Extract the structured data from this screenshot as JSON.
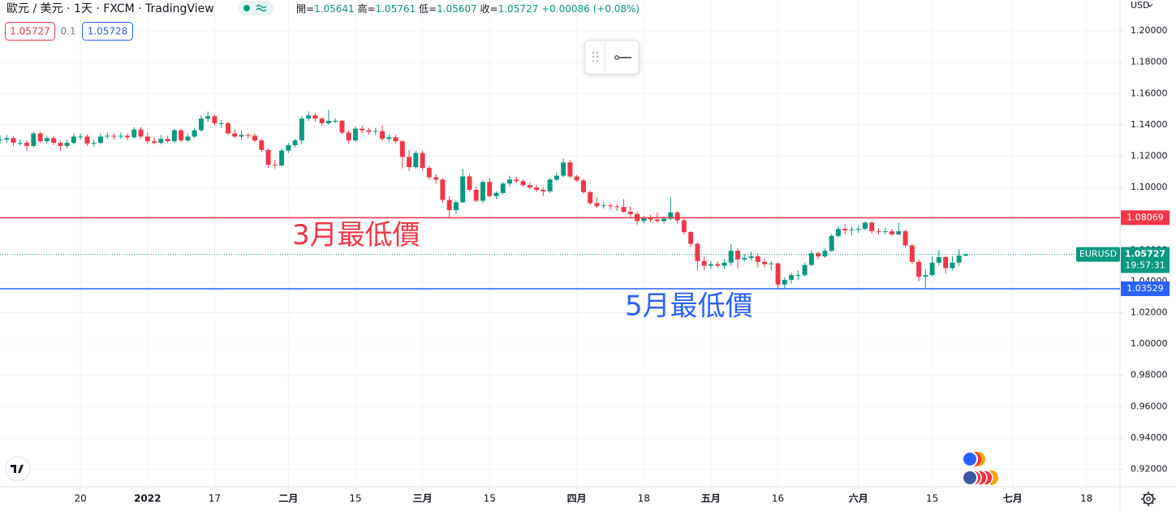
{
  "header": {
    "symbol": "歐元 / 美元 · 1天 · FXCM · TradingView",
    "open_label": "開=",
    "high_label": "高=",
    "low_label": "低=",
    "close_label": "收=",
    "change": "+0.00086",
    "change_pct": "(+0.08%)"
  },
  "quote": {
    "bid": 1.05727,
    "spread": 0.1,
    "ask": 1.05728
  },
  "currency": "USD",
  "chart_data": {
    "type": "candlestick",
    "symbol_label": "EURUSD",
    "countdown": "19:57:31",
    "up_color": "#089981",
    "down_color": "#f23645",
    "xlim": [
      0,
      167
    ],
    "ylim": [
      0.9089,
      1.2197
    ],
    "xticks": [
      {
        "value": 12,
        "label": "20"
      },
      {
        "value": 22,
        "label": "2022"
      },
      {
        "value": 32,
        "label": "17"
      },
      {
        "value": 43,
        "label": "二月"
      },
      {
        "value": 53,
        "label": "15"
      },
      {
        "value": 63,
        "label": "三月"
      },
      {
        "value": 73,
        "label": "15"
      },
      {
        "value": 86,
        "label": "四月"
      },
      {
        "value": 96,
        "label": "18"
      },
      {
        "value": 106,
        "label": "五月"
      },
      {
        "value": 116,
        "label": "16"
      },
      {
        "value": 128,
        "label": "六月"
      },
      {
        "value": 139,
        "label": "15"
      },
      {
        "value": 151,
        "label": "七月"
      },
      {
        "value": 162,
        "label": "18"
      }
    ],
    "yticks": [
      {
        "value": 0.92,
        "label": "0.92000"
      },
      {
        "value": 0.94,
        "label": "0.94000"
      },
      {
        "value": 0.96,
        "label": "0.96000"
      },
      {
        "value": 0.98,
        "label": "0.98000"
      },
      {
        "value": 1.0,
        "label": "1.00000"
      },
      {
        "value": 1.02,
        "label": "1.02000"
      },
      {
        "value": 1.04,
        "label": "1.04000"
      },
      {
        "value": 1.06,
        "label": "1.06000"
      },
      {
        "value": 1.08,
        "label": "1.08000"
      },
      {
        "value": 1.1,
        "label": "1.10000"
      },
      {
        "value": 1.12,
        "label": "1.12000"
      },
      {
        "value": 1.14,
        "label": "1.14000"
      },
      {
        "value": 1.16,
        "label": "1.16000"
      },
      {
        "value": 1.18,
        "label": "1.18000"
      },
      {
        "value": 1.2,
        "label": "1.20000"
      }
    ],
    "grid": true,
    "hlines": [
      {
        "value": 1.08069,
        "label": "3月最低價",
        "color": "#f23645"
      },
      {
        "value": 1.03529,
        "label": "5月最低價",
        "color": "#2962ff"
      }
    ],
    "ohlc": [
      [
        1.13,
        1.1335,
        1.128,
        1.1305
      ],
      [
        1.1305,
        1.1335,
        1.1285,
        1.1315
      ],
      [
        1.1315,
        1.133,
        1.1265,
        1.1285
      ],
      [
        1.1285,
        1.1305,
        1.1265,
        1.1285
      ],
      [
        1.1285,
        1.13,
        1.123,
        1.1265
      ],
      [
        1.1265,
        1.1355,
        1.1255,
        1.1345
      ],
      [
        1.1345,
        1.1355,
        1.1285,
        1.1295
      ],
      [
        1.1295,
        1.133,
        1.128,
        1.1315
      ],
      [
        1.1315,
        1.133,
        1.127,
        1.1285
      ],
      [
        1.1285,
        1.13,
        1.1235,
        1.1265
      ],
      [
        1.1265,
        1.1305,
        1.125,
        1.1285
      ],
      [
        1.1285,
        1.1345,
        1.1275,
        1.1325
      ],
      [
        1.1325,
        1.1345,
        1.1305,
        1.1325
      ],
      [
        1.1325,
        1.134,
        1.1265,
        1.128
      ],
      [
        1.128,
        1.1305,
        1.126,
        1.1285
      ],
      [
        1.1285,
        1.1345,
        1.1275,
        1.1325
      ],
      [
        1.1325,
        1.135,
        1.131,
        1.133
      ],
      [
        1.133,
        1.1345,
        1.1305,
        1.1325
      ],
      [
        1.1325,
        1.135,
        1.131,
        1.133
      ],
      [
        1.133,
        1.1345,
        1.13,
        1.132
      ],
      [
        1.132,
        1.1385,
        1.131,
        1.137
      ],
      [
        1.137,
        1.1385,
        1.131,
        1.1325
      ],
      [
        1.1325,
        1.135,
        1.128,
        1.1295
      ],
      [
        1.1295,
        1.132,
        1.1275,
        1.1285
      ],
      [
        1.1285,
        1.1335,
        1.1275,
        1.131
      ],
      [
        1.131,
        1.133,
        1.1285,
        1.1295
      ],
      [
        1.1295,
        1.1375,
        1.1285,
        1.1365
      ],
      [
        1.1365,
        1.1375,
        1.129,
        1.13
      ],
      [
        1.13,
        1.1345,
        1.129,
        1.1325
      ],
      [
        1.1325,
        1.138,
        1.1315,
        1.1365
      ],
      [
        1.1365,
        1.146,
        1.1355,
        1.144
      ],
      [
        1.144,
        1.1485,
        1.142,
        1.1455
      ],
      [
        1.1455,
        1.1465,
        1.1395,
        1.141
      ],
      [
        1.141,
        1.143,
        1.138,
        1.141
      ],
      [
        1.141,
        1.142,
        1.1335,
        1.1345
      ],
      [
        1.1345,
        1.137,
        1.1315,
        1.1325
      ],
      [
        1.1325,
        1.136,
        1.1305,
        1.1335
      ],
      [
        1.1335,
        1.135,
        1.131,
        1.133
      ],
      [
        1.133,
        1.1345,
        1.129,
        1.13
      ],
      [
        1.13,
        1.131,
        1.1225,
        1.124
      ],
      [
        1.124,
        1.125,
        1.1125,
        1.1145
      ],
      [
        1.1145,
        1.1175,
        1.112,
        1.114
      ],
      [
        1.114,
        1.125,
        1.1135,
        1.1235
      ],
      [
        1.1235,
        1.1285,
        1.122,
        1.127
      ],
      [
        1.127,
        1.131,
        1.1255,
        1.13
      ],
      [
        1.13,
        1.1455,
        1.128,
        1.144
      ],
      [
        1.144,
        1.1485,
        1.1425,
        1.146
      ],
      [
        1.146,
        1.1475,
        1.142,
        1.144
      ],
      [
        1.144,
        1.145,
        1.1395,
        1.141
      ],
      [
        1.141,
        1.1495,
        1.14,
        1.1425
      ],
      [
        1.1425,
        1.144,
        1.141,
        1.1425
      ],
      [
        1.1425,
        1.143,
        1.134,
        1.135
      ],
      [
        1.135,
        1.1365,
        1.128,
        1.13
      ],
      [
        1.13,
        1.139,
        1.129,
        1.1375
      ],
      [
        1.1375,
        1.1395,
        1.1345,
        1.1365
      ],
      [
        1.1365,
        1.138,
        1.1335,
        1.1355
      ],
      [
        1.1355,
        1.138,
        1.1335,
        1.136
      ],
      [
        1.136,
        1.1395,
        1.13,
        1.131
      ],
      [
        1.131,
        1.134,
        1.129,
        1.132
      ],
      [
        1.132,
        1.1335,
        1.128,
        1.1295
      ],
      [
        1.1295,
        1.13,
        1.112,
        1.1195
      ],
      [
        1.1195,
        1.124,
        1.1105,
        1.113
      ],
      [
        1.113,
        1.1235,
        1.112,
        1.122
      ],
      [
        1.122,
        1.1235,
        1.111,
        1.1125
      ],
      [
        1.1125,
        1.114,
        1.105,
        1.1065
      ],
      [
        1.1065,
        1.1085,
        1.1025,
        1.105
      ],
      [
        1.105,
        1.106,
        1.09,
        1.092
      ],
      [
        1.092,
        1.0945,
        1.0805,
        1.0855
      ],
      [
        1.0855,
        1.092,
        1.083,
        1.0905
      ],
      [
        1.0905,
        1.112,
        1.09,
        1.107
      ],
      [
        1.107,
        1.1085,
        1.0975,
        1.0985
      ],
      [
        1.0985,
        1.1005,
        1.0905,
        1.0915
      ],
      [
        1.0915,
        1.1045,
        1.09,
        1.1035
      ],
      [
        1.1035,
        1.106,
        1.0935,
        1.0945
      ],
      [
        1.0945,
        1.0975,
        1.0925,
        1.0965
      ],
      [
        1.0965,
        1.1035,
        1.0955,
        1.1025
      ],
      [
        1.1025,
        1.1075,
        1.1005,
        1.105
      ],
      [
        1.105,
        1.107,
        1.103,
        1.104
      ],
      [
        1.104,
        1.105,
        1.1005,
        1.1015
      ],
      [
        1.1015,
        1.103,
        1.099,
        1.1
      ],
      [
        1.1,
        1.1015,
        1.097,
        1.0985
      ],
      [
        1.0985,
        1.1,
        1.0945,
        1.0975
      ],
      [
        1.0975,
        1.106,
        1.0965,
        1.105
      ],
      [
        1.105,
        1.11,
        1.104,
        1.1075
      ],
      [
        1.1075,
        1.1185,
        1.1065,
        1.116
      ],
      [
        1.116,
        1.1175,
        1.106,
        1.107
      ],
      [
        1.107,
        1.108,
        1.1035,
        1.1045
      ],
      [
        1.1045,
        1.1055,
        1.096,
        1.097
      ],
      [
        1.097,
        1.098,
        1.089,
        1.09
      ],
      [
        1.09,
        1.0935,
        1.087,
        1.088
      ],
      [
        1.088,
        1.0905,
        1.0865,
        1.0885
      ],
      [
        1.0885,
        1.09,
        1.086,
        1.088
      ],
      [
        1.088,
        1.0895,
        1.085,
        1.0875
      ],
      [
        1.0875,
        1.0925,
        1.084,
        1.0845
      ],
      [
        1.0845,
        1.088,
        1.081,
        1.083
      ],
      [
        1.083,
        1.0845,
        1.076,
        1.0785
      ],
      [
        1.0785,
        1.082,
        1.077,
        1.0805
      ],
      [
        1.0805,
        1.0825,
        1.078,
        1.0795
      ],
      [
        1.0795,
        1.084,
        1.0775,
        1.0785
      ],
      [
        1.0785,
        1.0815,
        1.077,
        1.08
      ],
      [
        1.08,
        1.0935,
        1.079,
        1.084
      ],
      [
        1.084,
        1.085,
        1.077,
        1.079
      ],
      [
        1.079,
        1.08,
        1.07,
        1.0715
      ],
      [
        1.0715,
        1.072,
        1.062,
        1.064
      ],
      [
        1.064,
        1.065,
        1.047,
        1.053
      ],
      [
        1.053,
        1.056,
        1.047,
        1.05
      ],
      [
        1.05,
        1.053,
        1.048,
        1.051
      ],
      [
        1.051,
        1.0525,
        1.049,
        1.05
      ],
      [
        1.05,
        1.054,
        1.048,
        1.052
      ],
      [
        1.052,
        1.064,
        1.05,
        1.0595
      ],
      [
        1.0595,
        1.061,
        1.048,
        1.054
      ],
      [
        1.054,
        1.0575,
        1.0525,
        1.055
      ],
      [
        1.055,
        1.059,
        1.0535,
        1.056
      ],
      [
        1.056,
        1.058,
        1.049,
        1.0525
      ],
      [
        1.0525,
        1.0545,
        1.049,
        1.051
      ],
      [
        1.051,
        1.053,
        1.047,
        1.0515
      ],
      [
        1.0515,
        1.052,
        1.0355,
        1.038
      ],
      [
        1.038,
        1.0425,
        1.035,
        1.041
      ],
      [
        1.041,
        1.0455,
        1.0385,
        1.044
      ],
      [
        1.044,
        1.047,
        1.041,
        1.044
      ],
      [
        1.044,
        1.052,
        1.043,
        1.0505
      ],
      [
        1.0505,
        1.06,
        1.0495,
        1.058
      ],
      [
        1.058,
        1.059,
        1.054,
        1.056
      ],
      [
        1.056,
        1.061,
        1.055,
        1.0595
      ],
      [
        1.0595,
        1.07,
        1.059,
        1.069
      ],
      [
        1.069,
        1.075,
        1.068,
        1.0735
      ],
      [
        1.0735,
        1.0765,
        1.07,
        1.0725
      ],
      [
        1.0725,
        1.075,
        1.0695,
        1.073
      ],
      [
        1.073,
        1.076,
        1.071,
        1.0735
      ],
      [
        1.0735,
        1.0785,
        1.0725,
        1.0775
      ],
      [
        1.0775,
        1.0785,
        1.0705,
        1.072
      ],
      [
        1.072,
        1.074,
        1.07,
        1.0715
      ],
      [
        1.0715,
        1.0745,
        1.07,
        1.072
      ],
      [
        1.072,
        1.0735,
        1.069,
        1.07
      ],
      [
        1.07,
        1.0775,
        1.0695,
        1.072
      ],
      [
        1.072,
        1.073,
        1.0615,
        1.063
      ],
      [
        1.063,
        1.064,
        1.051,
        1.0525
      ],
      [
        1.0525,
        1.054,
        1.04,
        1.043
      ],
      [
        1.043,
        1.048,
        1.036,
        1.044
      ],
      [
        1.044,
        1.056,
        1.043,
        1.052
      ],
      [
        1.052,
        1.06,
        1.05,
        1.0555
      ],
      [
        1.0555,
        1.056,
        1.045,
        1.0485
      ],
      [
        1.0485,
        1.056,
        1.047,
        1.052
      ],
      [
        1.052,
        1.0605,
        1.05,
        1.05641
      ],
      [
        1.05641,
        1.05761,
        1.05607,
        1.05727
      ]
    ]
  }
}
